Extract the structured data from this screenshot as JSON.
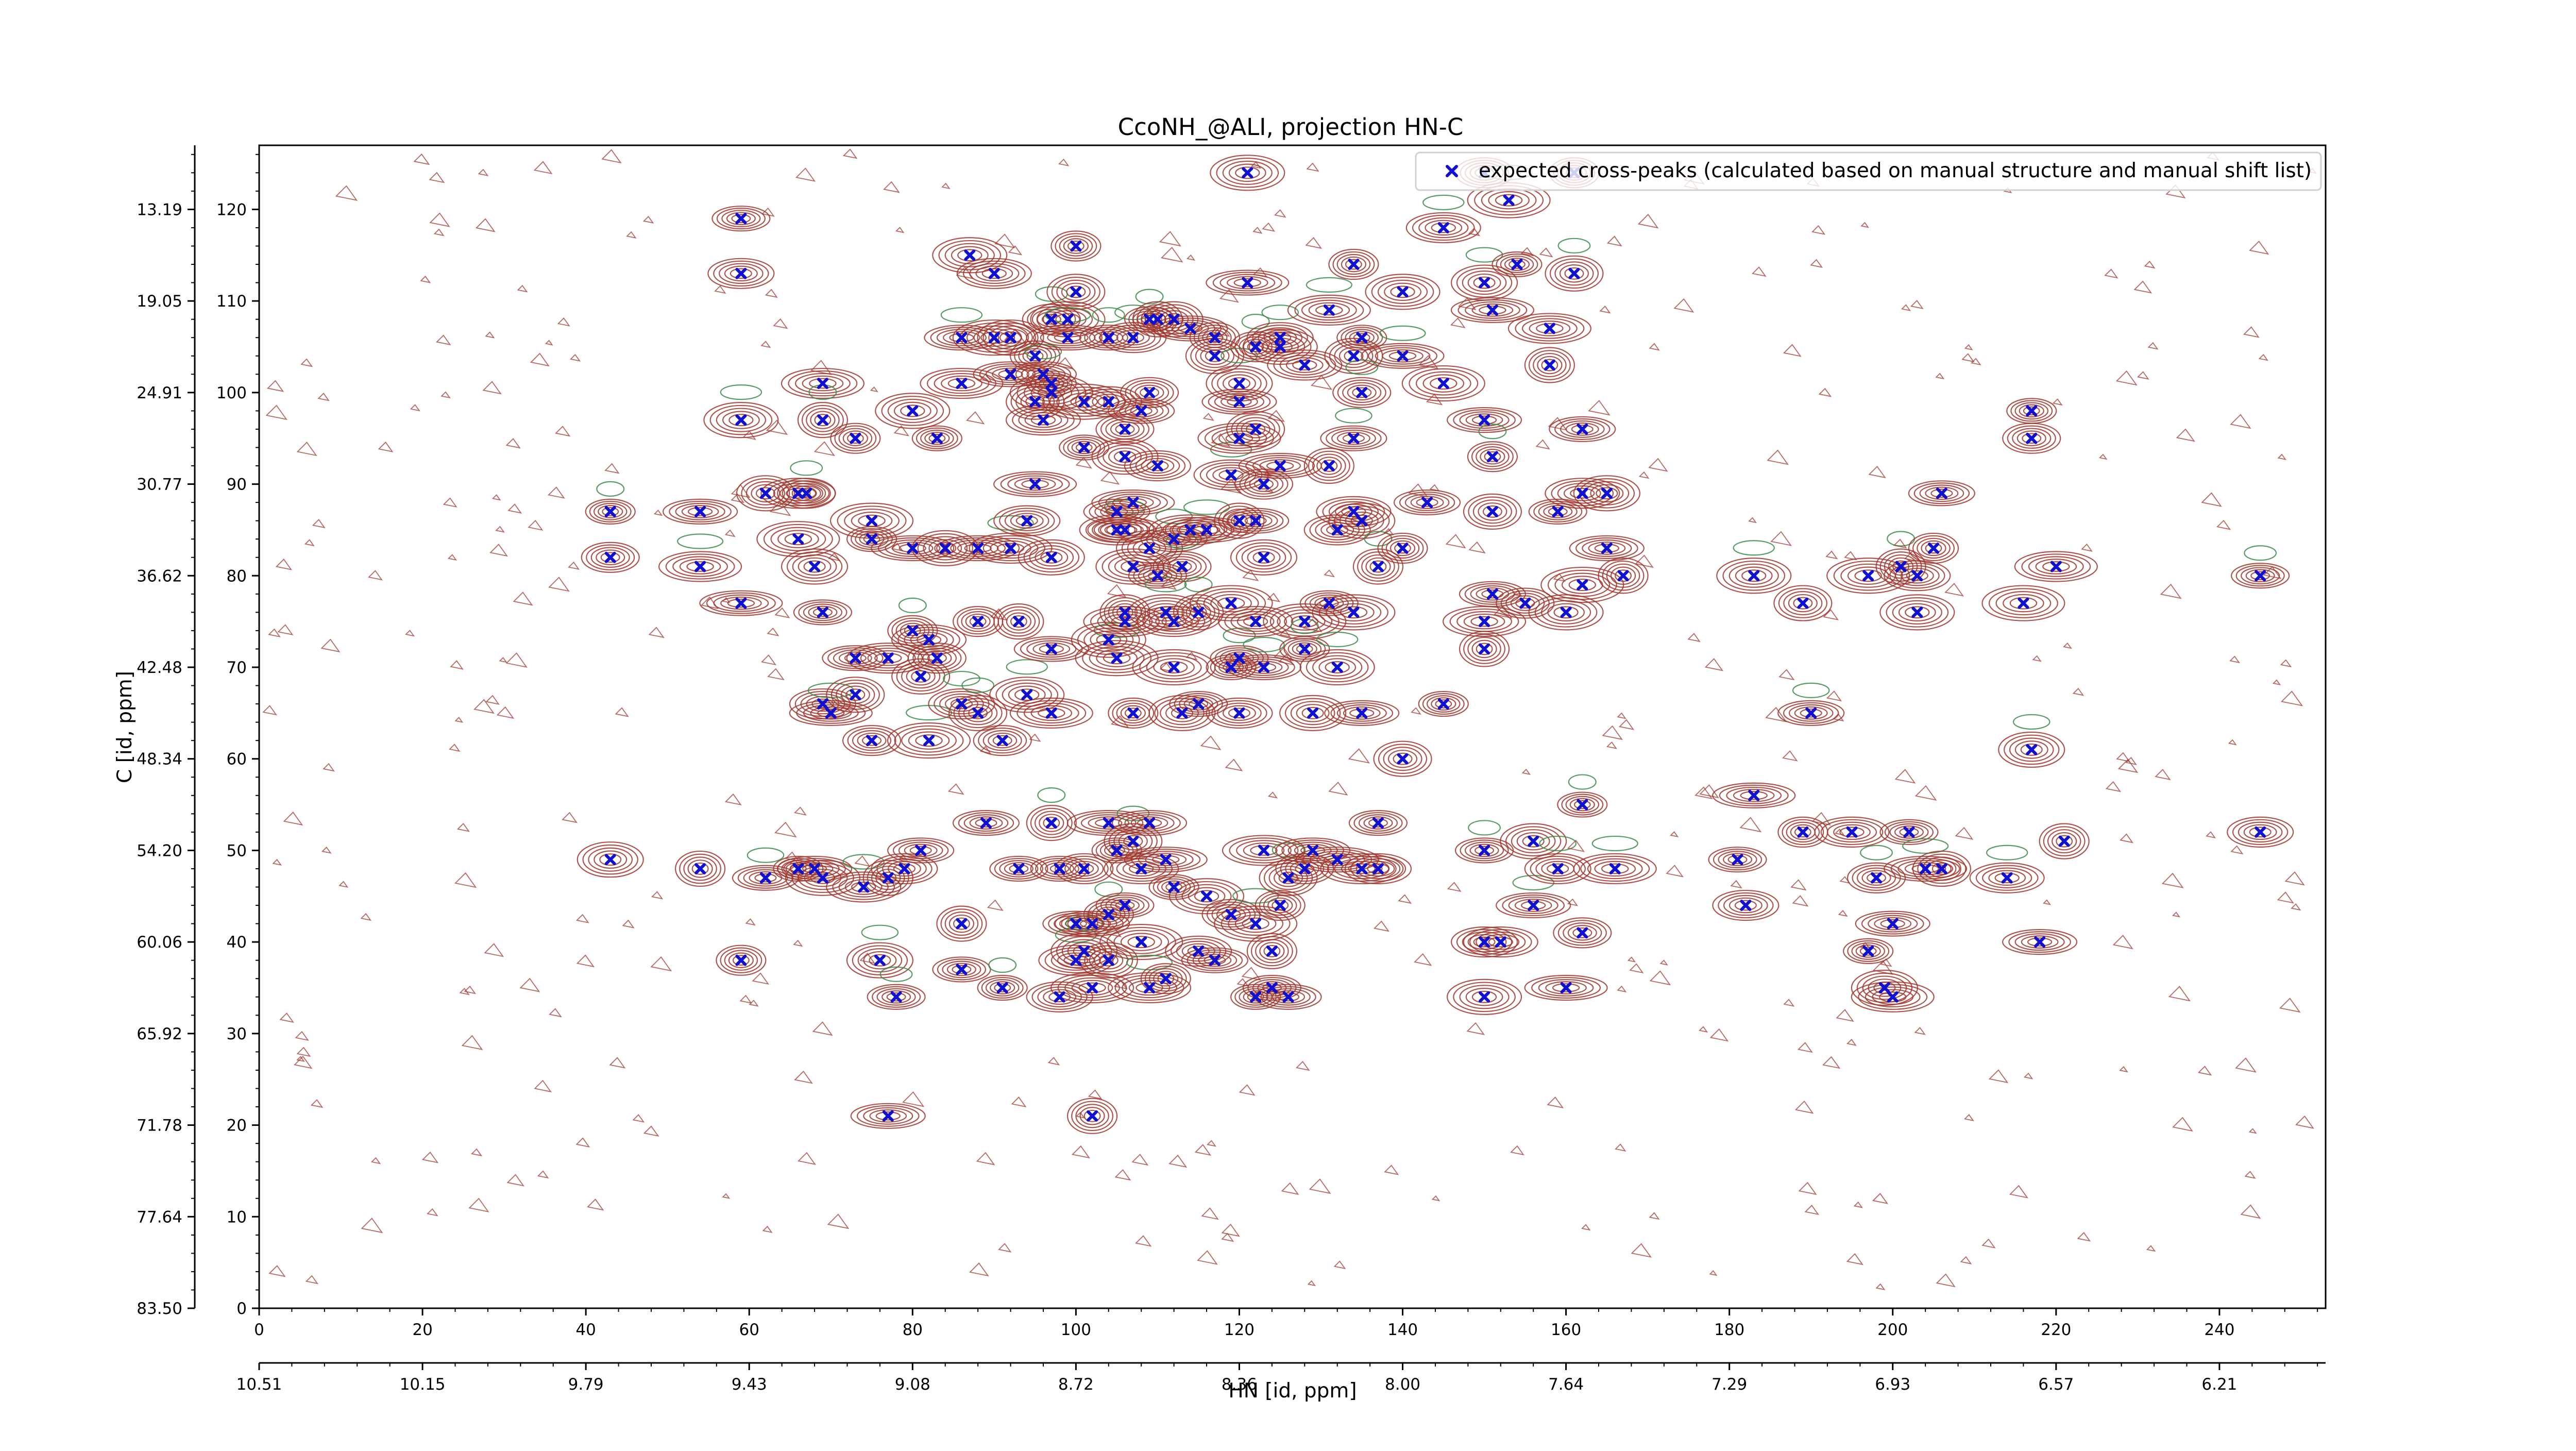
{
  "chart_data": {
    "type": "scatter",
    "title": "CcoNH_@ALI, projection HN-C",
    "xlabel": "HN [id, ppm]",
    "ylabel": "C [id, ppm]",
    "xlim": [
      0,
      253
    ],
    "ylim": [
      0,
      127
    ],
    "x_ticks": [
      0,
      20,
      40,
      60,
      80,
      100,
      120,
      140,
      160,
      180,
      200,
      220,
      240
    ],
    "y_ticks": [
      0,
      10,
      20,
      30,
      40,
      50,
      60,
      70,
      80,
      90,
      100,
      110,
      120
    ],
    "x_ppm_tick_labels": [
      "10.51",
      "10.15",
      "9.79",
      "9.43",
      "9.08",
      "8.72",
      "8.36",
      "8.00",
      "7.64",
      "7.29",
      "6.93",
      "6.57",
      "6.21"
    ],
    "y_ppm_tick_labels": [
      "83.50",
      "77.64",
      "71.78",
      "65.92",
      "60.06",
      "54.20",
      "48.34",
      "42.48",
      "36.62",
      "30.77",
      "24.91",
      "19.05",
      "13.19"
    ],
    "legend_position": "top-right",
    "grid": false,
    "colors": {
      "positive_contour": "#a0352c",
      "negative_contour": "#3b8a4a",
      "marker": "#1010d0"
    },
    "series": [
      {
        "name": "expected cross-peaks (calculated based on manual structure and manual shift list)",
        "marker": "x",
        "color": "#1010d0",
        "points": [
          [
            43,
            87
          ],
          [
            43,
            82
          ],
          [
            43,
            49
          ],
          [
            54,
            87
          ],
          [
            54,
            81
          ],
          [
            54,
            48
          ],
          [
            59,
            119
          ],
          [
            59,
            113
          ],
          [
            59,
            97
          ],
          [
            59,
            77
          ],
          [
            59,
            38
          ],
          [
            62,
            89
          ],
          [
            62,
            47
          ],
          [
            66,
            89
          ],
          [
            66,
            84
          ],
          [
            66,
            48
          ],
          [
            67,
            89
          ],
          [
            68,
            81
          ],
          [
            68,
            48
          ],
          [
            69,
            101
          ],
          [
            69,
            97
          ],
          [
            69,
            76
          ],
          [
            69,
            66
          ],
          [
            69,
            47
          ],
          [
            70,
            65
          ],
          [
            73,
            95
          ],
          [
            73,
            67
          ],
          [
            73,
            71
          ],
          [
            74,
            46
          ],
          [
            75,
            86
          ],
          [
            75,
            84
          ],
          [
            75,
            62
          ],
          [
            76,
            38
          ],
          [
            77,
            21
          ],
          [
            77,
            71
          ],
          [
            77,
            47
          ],
          [
            78,
            34
          ],
          [
            79,
            48
          ],
          [
            80,
            98
          ],
          [
            80,
            83
          ],
          [
            80,
            74
          ],
          [
            81,
            69
          ],
          [
            81,
            50
          ],
          [
            82,
            73
          ],
          [
            82,
            62
          ],
          [
            83,
            95
          ],
          [
            83,
            71
          ],
          [
            84,
            83
          ],
          [
            86,
            106
          ],
          [
            86,
            101
          ],
          [
            86,
            42
          ],
          [
            86,
            37
          ],
          [
            86,
            66
          ],
          [
            87,
            115
          ],
          [
            88,
            83
          ],
          [
            88,
            75
          ],
          [
            88,
            65
          ],
          [
            89,
            53
          ],
          [
            90,
            113
          ],
          [
            90,
            106
          ],
          [
            91,
            35
          ],
          [
            91,
            62
          ],
          [
            92,
            106
          ],
          [
            92,
            102
          ],
          [
            92,
            83
          ],
          [
            93,
            75
          ],
          [
            93,
            48
          ],
          [
            94,
            86
          ],
          [
            94,
            67
          ],
          [
            95,
            90
          ],
          [
            95,
            104
          ],
          [
            95,
            99
          ],
          [
            96,
            102
          ],
          [
            96,
            97
          ],
          [
            97,
            100
          ],
          [
            97,
            101
          ],
          [
            97,
            108
          ],
          [
            97,
            82
          ],
          [
            97,
            72
          ],
          [
            97,
            65
          ],
          [
            97,
            53
          ],
          [
            98,
            48
          ],
          [
            98,
            34
          ],
          [
            99,
            108
          ],
          [
            99,
            106
          ],
          [
            100,
            116
          ],
          [
            100,
            111
          ],
          [
            100,
            42
          ],
          [
            100,
            38
          ],
          [
            101,
            99
          ],
          [
            101,
            94
          ],
          [
            101,
            48
          ],
          [
            101,
            39
          ],
          [
            102,
            42
          ],
          [
            102,
            35
          ],
          [
            102,
            21
          ],
          [
            104,
            106
          ],
          [
            104,
            99
          ],
          [
            104,
            73
          ],
          [
            104,
            53
          ],
          [
            104,
            43
          ],
          [
            104,
            38
          ],
          [
            105,
            87
          ],
          [
            105,
            85
          ],
          [
            105,
            71
          ],
          [
            105,
            50
          ],
          [
            106,
            96
          ],
          [
            106,
            93
          ],
          [
            106,
            85
          ],
          [
            106,
            75
          ],
          [
            106,
            76
          ],
          [
            106,
            44
          ],
          [
            107,
            106
          ],
          [
            107,
            81
          ],
          [
            107,
            88
          ],
          [
            107,
            65
          ],
          [
            107,
            51
          ],
          [
            108,
            98
          ],
          [
            108,
            48
          ],
          [
            108,
            40
          ],
          [
            109,
            108
          ],
          [
            109,
            100
          ],
          [
            109,
            83
          ],
          [
            109,
            53
          ],
          [
            109,
            35
          ],
          [
            110,
            108
          ],
          [
            110,
            80
          ],
          [
            110,
            92
          ],
          [
            111,
            76
          ],
          [
            111,
            49
          ],
          [
            111,
            36
          ],
          [
            112,
            108
          ],
          [
            112,
            84
          ],
          [
            112,
            75
          ],
          [
            112,
            70
          ],
          [
            112,
            46
          ],
          [
            113,
            81
          ],
          [
            113,
            65
          ],
          [
            114,
            107
          ],
          [
            114,
            85
          ],
          [
            115,
            76
          ],
          [
            115,
            66
          ],
          [
            115,
            39
          ],
          [
            116,
            45
          ],
          [
            116,
            85
          ],
          [
            117,
            106
          ],
          [
            117,
            104
          ],
          [
            117,
            38
          ],
          [
            119,
            91
          ],
          [
            119,
            77
          ],
          [
            119,
            70
          ],
          [
            119,
            43
          ],
          [
            120,
            101
          ],
          [
            120,
            99
          ],
          [
            120,
            95
          ],
          [
            120,
            86
          ],
          [
            120,
            71
          ],
          [
            120,
            65
          ],
          [
            121,
            124
          ],
          [
            121,
            112
          ],
          [
            122,
            105
          ],
          [
            122,
            96
          ],
          [
            122,
            86
          ],
          [
            122,
            75
          ],
          [
            122,
            42
          ],
          [
            122,
            34
          ],
          [
            123,
            90
          ],
          [
            123,
            82
          ],
          [
            123,
            70
          ],
          [
            123,
            50
          ],
          [
            124,
            39
          ],
          [
            124,
            35
          ],
          [
            125,
            106
          ],
          [
            125,
            105
          ],
          [
            125,
            92
          ],
          [
            125,
            44
          ],
          [
            126,
            47
          ],
          [
            126,
            34
          ],
          [
            128,
            103
          ],
          [
            128,
            75
          ],
          [
            128,
            72
          ],
          [
            128,
            48
          ],
          [
            129,
            65
          ],
          [
            129,
            50
          ],
          [
            131,
            109
          ],
          [
            131,
            92
          ],
          [
            131,
            77
          ],
          [
            132,
            85
          ],
          [
            132,
            70
          ],
          [
            132,
            49
          ],
          [
            134,
            114
          ],
          [
            134,
            104
          ],
          [
            134,
            95
          ],
          [
            134,
            87
          ],
          [
            134,
            76
          ],
          [
            135,
            106
          ],
          [
            135,
            100
          ],
          [
            135,
            86
          ],
          [
            135,
            65
          ],
          [
            135,
            48
          ],
          [
            137,
            81
          ],
          [
            137,
            53
          ],
          [
            137,
            48
          ],
          [
            140,
            111
          ],
          [
            140,
            104
          ],
          [
            140,
            83
          ],
          [
            140,
            60
          ],
          [
            143,
            88
          ],
          [
            145,
            118
          ],
          [
            145,
            101
          ],
          [
            145,
            66
          ],
          [
            150,
            124
          ],
          [
            150,
            112
          ],
          [
            150,
            97
          ],
          [
            150,
            75
          ],
          [
            150,
            72
          ],
          [
            150,
            50
          ],
          [
            150,
            40
          ],
          [
            150,
            34
          ],
          [
            151,
            109
          ],
          [
            151,
            93
          ],
          [
            151,
            87
          ],
          [
            151,
            78
          ],
          [
            152,
            40
          ],
          [
            153,
            121
          ],
          [
            154,
            114
          ],
          [
            155,
            77
          ],
          [
            156,
            51
          ],
          [
            156,
            44
          ],
          [
            158,
            107
          ],
          [
            158,
            103
          ],
          [
            159,
            87
          ],
          [
            159,
            48
          ],
          [
            160,
            76
          ],
          [
            160,
            35
          ],
          [
            161,
            124
          ],
          [
            161,
            113
          ],
          [
            162,
            96
          ],
          [
            162,
            89
          ],
          [
            162,
            79
          ],
          [
            162,
            55
          ],
          [
            162,
            41
          ],
          [
            165,
            89
          ],
          [
            165,
            83
          ],
          [
            166,
            48
          ],
          [
            167,
            80
          ],
          [
            181,
            49
          ],
          [
            182,
            44
          ],
          [
            183,
            80
          ],
          [
            183,
            56
          ],
          [
            189,
            52
          ],
          [
            189,
            77
          ],
          [
            190,
            65
          ],
          [
            195,
            52
          ],
          [
            197,
            80
          ],
          [
            197,
            39
          ],
          [
            198,
            47
          ],
          [
            199,
            35
          ],
          [
            200,
            42
          ],
          [
            200,
            34
          ],
          [
            201,
            81
          ],
          [
            202,
            52
          ],
          [
            203,
            80
          ],
          [
            203,
            76
          ],
          [
            204,
            48
          ],
          [
            205,
            83
          ],
          [
            206,
            48
          ],
          [
            206,
            89
          ],
          [
            214,
            47
          ],
          [
            216,
            77
          ],
          [
            217,
            98
          ],
          [
            217,
            95
          ],
          [
            217,
            61
          ],
          [
            218,
            40
          ],
          [
            220,
            81
          ],
          [
            221,
            51
          ],
          [
            245,
            80
          ],
          [
            245,
            52
          ]
        ]
      }
    ]
  }
}
